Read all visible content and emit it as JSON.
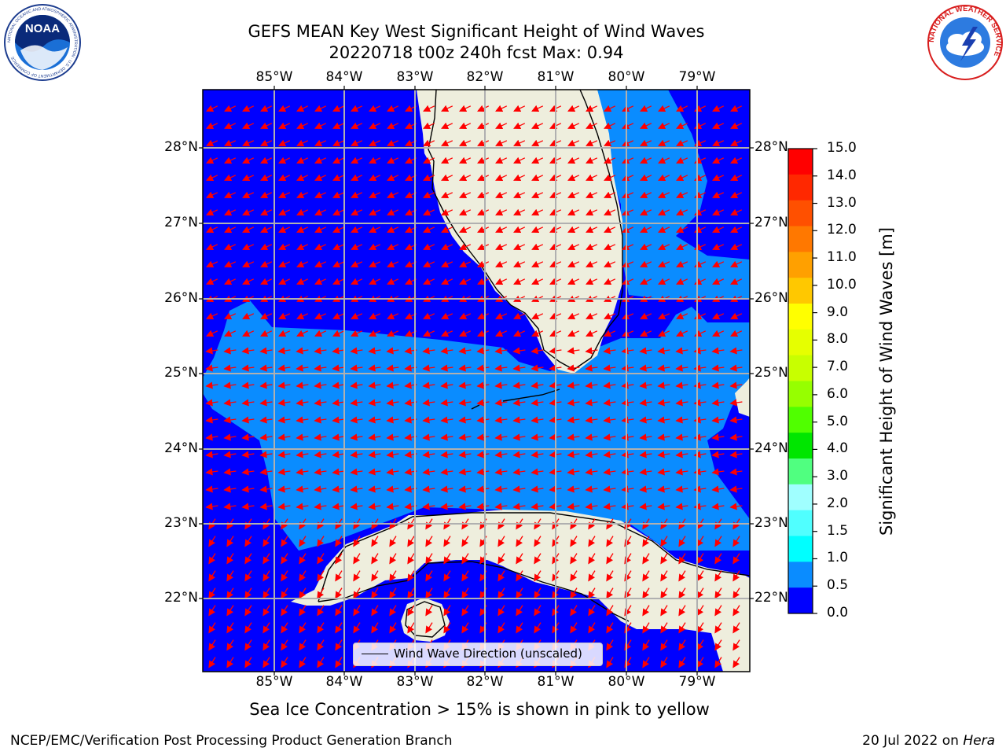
{
  "title": {
    "line1": "GEFS MEAN Key West Significant Height of Wind Waves",
    "line2": "20220718 t00z 240h fcst   Max: 0.94"
  },
  "map": {
    "lon_labels": [
      "85°W",
      "84°W",
      "83°W",
      "82°W",
      "81°W",
      "80°W",
      "79°W"
    ],
    "lat_labels": [
      "28°N",
      "27°N",
      "26°N",
      "25°N",
      "24°N",
      "23°N",
      "22°N"
    ],
    "colors": {
      "water_low": "#0000ff",
      "water_mid": "#0a8cff",
      "land": "#eeeedd",
      "grid": "#b0b0b0",
      "arrow": "#ff0000"
    },
    "legend_label": "Wind Wave Direction (unscaled)",
    "overlay": "wind wave direction arrows (red)"
  },
  "colorbar": {
    "label": "Significant Height of Wind Waves [m]",
    "ticks": [
      "15.0",
      "14.0",
      "13.0",
      "12.0",
      "11.0",
      "10.0",
      "9.0",
      "8.0",
      "7.0",
      "6.0",
      "5.0",
      "4.0",
      "3.0",
      "2.0",
      "1.5",
      "1.0",
      "0.5",
      "0.0"
    ],
    "colors": [
      "#ff0000",
      "#ff2800",
      "#ff5000",
      "#ff7800",
      "#ffa000",
      "#ffc800",
      "#ffff00",
      "#e6ff00",
      "#c8ff00",
      "#96ff00",
      "#50ff00",
      "#00e600",
      "#50ff80",
      "#a0ffff",
      "#50ffff",
      "#00ffff",
      "#0a8cff",
      "#0000ff"
    ]
  },
  "caption": "Sea Ice Concentration > 15% is shown in pink to yellow",
  "footer": {
    "left": "NCEP/EMC/Verification Post Processing Product Generation Branch",
    "right_date": "20 Jul 2022 on",
    "right_host": "Hera"
  },
  "logos": {
    "noaa_text": "NOAA",
    "noaa_ring": "NATIONAL OCEANIC AND ATMOSPHERIC ADMINISTRATION · U.S. DEPARTMENT OF COMMERCE",
    "nws_ring": "NATIONAL WEATHER SERVICE"
  }
}
